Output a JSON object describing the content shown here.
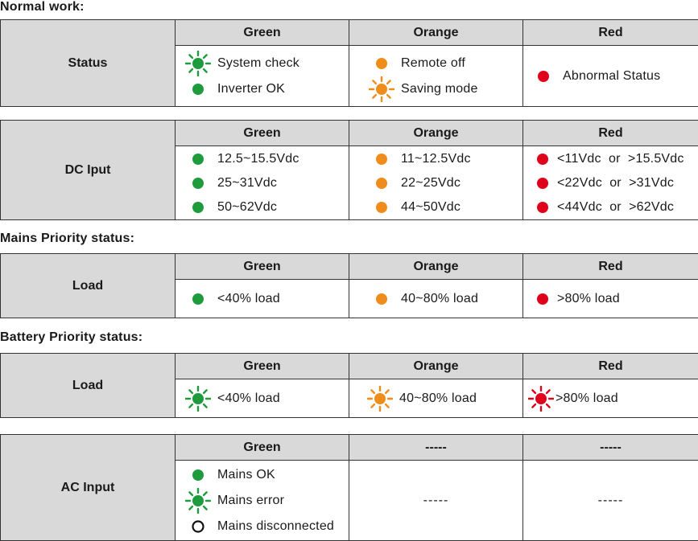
{
  "colors": {
    "green": "#1e9b3c",
    "orange": "#f08c1a",
    "red": "#e0001b",
    "header_bg": "#d9d9d9"
  },
  "sections": {
    "normal_work": {
      "title": "Normal work:"
    },
    "mains_priority": {
      "title": "Mains Priority status:"
    },
    "battery_priority": {
      "title": "Battery Priority status:"
    }
  },
  "tables": {
    "status": {
      "headers": [
        "Green",
        "Orange",
        "Red"
      ],
      "row_label": "Status",
      "cells": [
        [
          {
            "icon": "green-flashing-led-icon",
            "text": "System check"
          },
          {
            "icon": "green-solid-led-icon",
            "text": "Inverter OK"
          }
        ],
        [
          {
            "icon": "orange-solid-led-icon",
            "text": "Remote off"
          },
          {
            "icon": "orange-flashing-led-icon",
            "text": "Saving mode"
          }
        ],
        [
          {
            "icon": "red-solid-led-icon",
            "text": "Abnormal Status"
          }
        ]
      ]
    },
    "dc_input": {
      "headers": [
        "Green",
        "Orange",
        "Red"
      ],
      "row_label": "DC Iput",
      "cells": [
        [
          {
            "icon": "green-solid-led-icon",
            "text": "12.5~15.5Vdc"
          },
          {
            "icon": "green-solid-led-icon",
            "text": "25~31Vdc"
          },
          {
            "icon": "green-solid-led-icon",
            "text": "50~62Vdc"
          }
        ],
        [
          {
            "icon": "orange-solid-led-icon",
            "text": "11~12.5Vdc"
          },
          {
            "icon": "orange-solid-led-icon",
            "text": "22~25Vdc"
          },
          {
            "icon": "orange-solid-led-icon",
            "text": "44~50Vdc"
          }
        ],
        [
          {
            "icon": "red-solid-led-icon",
            "text": "<11Vdc  or  >15.5Vdc"
          },
          {
            "icon": "red-solid-led-icon",
            "text": "<22Vdc  or  >31Vdc"
          },
          {
            "icon": "red-solid-led-icon",
            "text": "<44Vdc  or  >62Vdc"
          }
        ]
      ]
    },
    "mains_load": {
      "headers": [
        "Green",
        "Orange",
        "Red"
      ],
      "row_label": "Load",
      "cells": [
        [
          {
            "icon": "green-solid-led-icon",
            "text": "<40% load"
          }
        ],
        [
          {
            "icon": "orange-solid-led-icon",
            "text": "40~80% load"
          }
        ],
        [
          {
            "icon": "red-solid-led-icon",
            "text": ">80% load"
          }
        ]
      ]
    },
    "battery_load": {
      "headers": [
        "Green",
        "Orange",
        "Red"
      ],
      "row_label": "Load",
      "cells": [
        [
          {
            "icon": "green-flashing-led-icon",
            "text": "<40% load"
          }
        ],
        [
          {
            "icon": "orange-flashing-led-icon",
            "text": "40~80% load"
          }
        ],
        [
          {
            "icon": "red-flashing-led-icon",
            "text": ">80% load"
          }
        ]
      ]
    },
    "ac_input": {
      "headers": [
        "Green",
        "-----",
        "-----"
      ],
      "row_label": "AC Input",
      "cells": [
        [
          {
            "icon": "green-solid-led-icon",
            "text": "Mains OK"
          },
          {
            "icon": "green-flashing-led-icon",
            "text": "Mains error"
          },
          {
            "icon": "off-led-icon",
            "text": "Mains disconnected"
          }
        ],
        "-----",
        "-----"
      ]
    }
  }
}
